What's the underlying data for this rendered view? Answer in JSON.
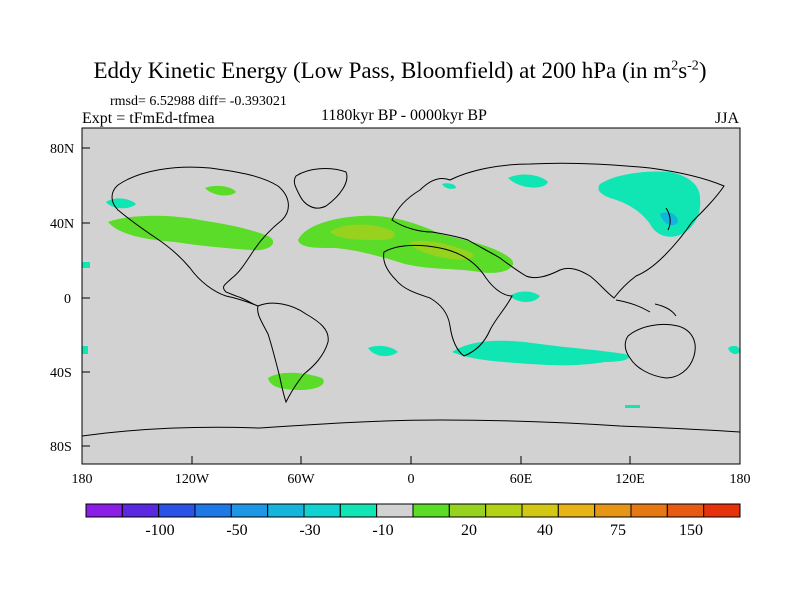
{
  "title": "Eddy Kinetic Energy (Low Pass, Bloomfield) at 200 hPa (in m²s⁻²)",
  "title_main": "Eddy Kinetic Energy (Low Pass, Bloomfield) at 200 hPa (in m",
  "title_sup1": "2",
  "title_mid": "s",
  "title_sup2": "-2",
  "title_end": ")",
  "stats": "rmsd= 6.52988 diff= -0.393021",
  "experiment": "Expt = tFmEd-tfmea",
  "period": "1180kyr BP - 0000kyr BP",
  "season": "JJA",
  "axes": {
    "lat_ticks": [
      "80N",
      "40N",
      "0",
      "40S",
      "80S"
    ],
    "lon_ticks": [
      "180",
      "120W",
      "60W",
      "0",
      "60E",
      "120E",
      "180"
    ]
  },
  "colorbar": {
    "colors": [
      "#8a1ee6",
      "#5a28e0",
      "#2a52e6",
      "#1e78e6",
      "#1e96e6",
      "#14b4dc",
      "#10d2d2",
      "#10e6b4",
      "#d2d2d2",
      "#5adc28",
      "#96d21e",
      "#b4d214",
      "#d2c814",
      "#e6b414",
      "#e69614",
      "#e67814",
      "#e65a14",
      "#e6320a"
    ],
    "labels": [
      "-100",
      "-50",
      "-30",
      "-10",
      "20",
      "40",
      "75",
      "150"
    ]
  },
  "colors": {
    "land_bg": "#d2d2d2",
    "positive": "#5adc28",
    "positive_strong": "#b4d214",
    "negative": "#10e6b4",
    "negative_strong": "#14b4dc"
  }
}
